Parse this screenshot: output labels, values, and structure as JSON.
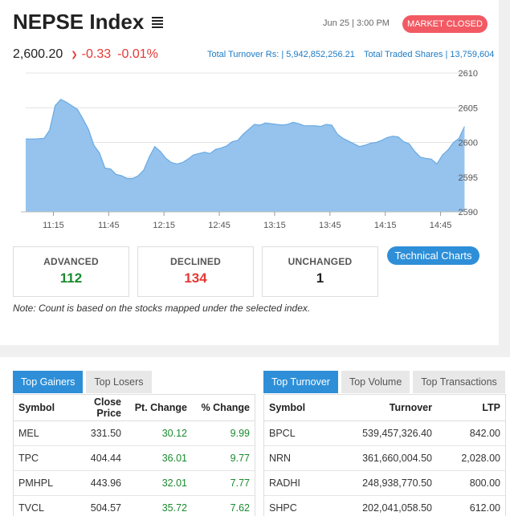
{
  "header": {
    "title": "NEPSE Index",
    "datetime": "Jun 25 | 3:00 PM",
    "status": "MARKET CLOSED"
  },
  "price": {
    "value": "2,600.20",
    "change": "-0.33",
    "percent": "-0.01%"
  },
  "turnover": {
    "label": "Total Turnover Rs: | 5,942,852,256.21",
    "shares": "Total Traded Shares | 13,759,604"
  },
  "chart_data": {
    "type": "area",
    "title": "",
    "xlabel": "",
    "ylabel": "",
    "ylim": [
      2590,
      2610
    ],
    "x_ticks": [
      "11:15",
      "11:45",
      "12:15",
      "12:45",
      "13:15",
      "13:45",
      "14:15",
      "14:45"
    ],
    "y_ticks": [
      "2610",
      "2605",
      "2600",
      "2595",
      "2590"
    ],
    "grid": true,
    "color": "#8fc0ec",
    "x": [
      "11:00",
      "11:05",
      "11:10",
      "11:13",
      "11:16",
      "11:19",
      "11:22",
      "11:25",
      "11:28",
      "11:31",
      "11:34",
      "11:37",
      "11:40",
      "11:43",
      "11:46",
      "11:49",
      "11:52",
      "11:55",
      "11:58",
      "12:01",
      "12:04",
      "12:07",
      "12:10",
      "12:13",
      "12:16",
      "12:19",
      "12:22",
      "12:25",
      "12:28",
      "12:31",
      "12:34",
      "12:37",
      "12:40",
      "12:43",
      "12:46",
      "12:49",
      "12:52",
      "12:55",
      "12:58",
      "13:01",
      "13:04",
      "13:07",
      "13:10",
      "13:13",
      "13:16",
      "13:19",
      "13:22",
      "13:25",
      "13:28",
      "13:31",
      "13:34",
      "13:37",
      "13:40",
      "13:43",
      "13:46",
      "13:49",
      "13:52",
      "13:55",
      "13:58",
      "14:01",
      "14:04",
      "14:07",
      "14:10",
      "14:13",
      "14:16",
      "14:19",
      "14:22",
      "14:25",
      "14:28",
      "14:31",
      "14:34",
      "14:37",
      "14:40",
      "14:43",
      "14:46",
      "14:49",
      "14:52",
      "14:55",
      "14:58"
    ],
    "values": [
      2600.5,
      2600.5,
      2600.6,
      2601.8,
      2605.3,
      2606.2,
      2605.8,
      2605.3,
      2604.8,
      2603.4,
      2601.9,
      2599.6,
      2598.5,
      2596.3,
      2596.2,
      2595.4,
      2595.2,
      2594.8,
      2594.8,
      2595.2,
      2596.0,
      2597.9,
      2599.4,
      2598.7,
      2597.7,
      2597.1,
      2596.9,
      2597.1,
      2597.6,
      2598.2,
      2598.4,
      2598.6,
      2598.4,
      2599.0,
      2599.2,
      2599.5,
      2600.1,
      2600.3,
      2601.2,
      2601.9,
      2602.6,
      2602.5,
      2602.8,
      2602.7,
      2602.6,
      2602.5,
      2602.6,
      2602.9,
      2602.7,
      2602.4,
      2602.4,
      2602.4,
      2602.3,
      2602.6,
      2602.5,
      2601.2,
      2600.6,
      2600.2,
      2599.8,
      2599.4,
      2599.6,
      2599.9,
      2600.0,
      2600.3,
      2600.7,
      2600.9,
      2600.8,
      2600.1,
      2599.8,
      2598.7,
      2597.9,
      2597.7,
      2597.6,
      2596.9,
      2598.2,
      2598.9,
      2600.0,
      2600.6,
      2602.3
    ]
  },
  "stats": {
    "advanced_label": "ADVANCED",
    "advanced": "112",
    "declined_label": "DECLINED",
    "declined": "134",
    "unchanged_label": "UNCHANGED",
    "unchanged": "1"
  },
  "tech_button": "Technical Charts",
  "note": "Note: Count is based on the stocks mapped under the selected index.",
  "gainers": {
    "tabs": [
      "Top Gainers",
      "Top Losers"
    ],
    "headers": [
      "Symbol",
      "Close Price",
      "Pt. Change",
      "% Change"
    ],
    "rows": [
      [
        "MEL",
        "331.50",
        "30.12",
        "9.99"
      ],
      [
        "TPC",
        "404.44",
        "36.01",
        "9.77"
      ],
      [
        "PMHPL",
        "443.96",
        "32.01",
        "7.77"
      ],
      [
        "TVCL",
        "504.57",
        "35.72",
        "7.62"
      ]
    ]
  },
  "turnover_table": {
    "tabs": [
      "Top Turnover",
      "Top Volume",
      "Top Transactions"
    ],
    "headers": [
      "Symbol",
      "Turnover",
      "LTP"
    ],
    "rows": [
      [
        "BPCL",
        "539,457,326.40",
        "842.00"
      ],
      [
        "NRN",
        "361,660,004.50",
        "2,028.00"
      ],
      [
        "RADHI",
        "248,938,770.50",
        "800.00"
      ],
      [
        "SHPC",
        "202,041,058.50",
        "612.00"
      ]
    ]
  }
}
